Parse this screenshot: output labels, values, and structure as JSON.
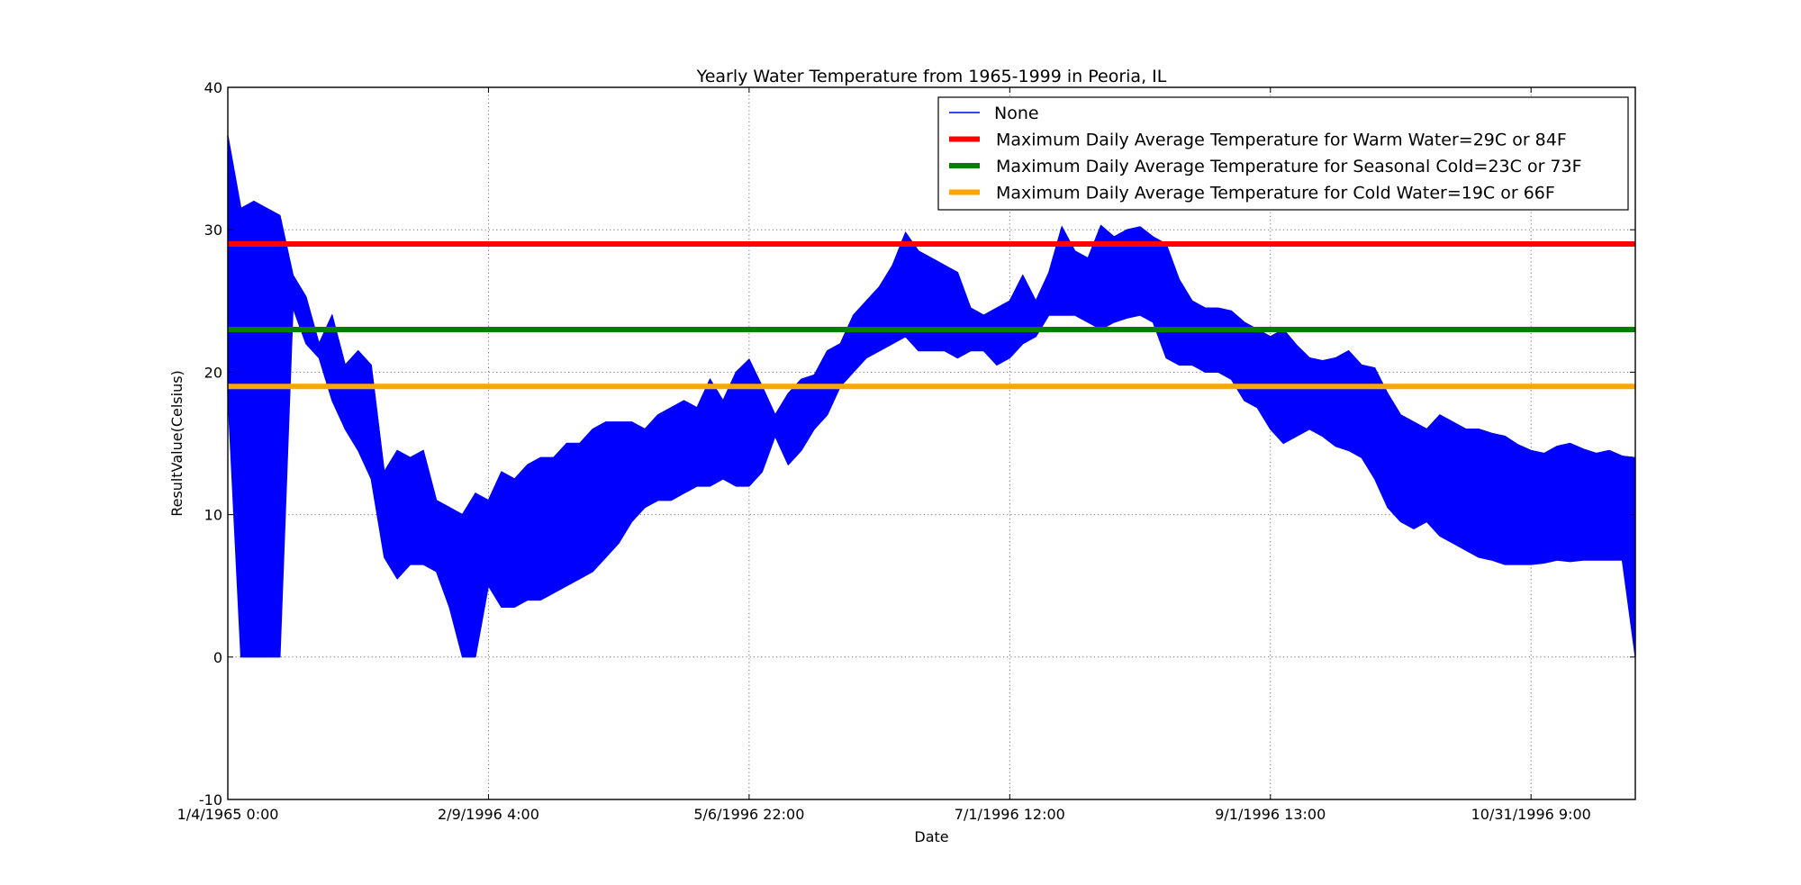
{
  "chart_data": {
    "type": "line",
    "title": "Yearly Water Temperature from 1965-1999 in Peoria, IL",
    "xlabel": "Date",
    "ylabel": "ResultValue(Celsius)",
    "ylim": [
      -10,
      40
    ],
    "yticks": [
      -10,
      0,
      10,
      20,
      30,
      40
    ],
    "x_tick_labels": [
      "1/4/1965 0:00",
      "2/9/1996 4:00",
      "5/6/1996 22:00",
      "7/1/1996 12:00",
      "9/1/1996 13:00",
      "10/31/1996 9:00"
    ],
    "x_index_range": [
      0,
      5.4
    ],
    "grid": true,
    "legend_position": "top-right",
    "series": [
      {
        "name": "None",
        "type": "band",
        "color": "#0000ff",
        "x": [
          0.0,
          0.05,
          0.1,
          0.15,
          0.2,
          0.25,
          0.3,
          0.35,
          0.4,
          0.45,
          0.5,
          0.55,
          0.6,
          0.65,
          0.7,
          0.75,
          0.8,
          0.85,
          0.9,
          0.95,
          1.0,
          1.05,
          1.1,
          1.15,
          1.2,
          1.25,
          1.3,
          1.35,
          1.4,
          1.45,
          1.5,
          1.55,
          1.6,
          1.65,
          1.7,
          1.75,
          1.8,
          1.85,
          1.9,
          1.95,
          2.0,
          2.05,
          2.1,
          2.15,
          2.2,
          2.25,
          2.3,
          2.35,
          2.4,
          2.45,
          2.5,
          2.55,
          2.6,
          2.65,
          2.7,
          2.75,
          2.8,
          2.85,
          2.9,
          2.95,
          3.0,
          3.05,
          3.1,
          3.15,
          3.2,
          3.25,
          3.3,
          3.35,
          3.4,
          3.45,
          3.5,
          3.55,
          3.6,
          3.65,
          3.7,
          3.75,
          3.8,
          3.85,
          3.9,
          3.95,
          4.0,
          4.05,
          4.1,
          4.15,
          4.2,
          4.25,
          4.3,
          4.35,
          4.4,
          4.45,
          4.5,
          4.55,
          4.6,
          4.65,
          4.7,
          4.75,
          4.8,
          4.85,
          4.9,
          4.95,
          5.0,
          5.05,
          5.1,
          5.15,
          5.2,
          5.25,
          5.3,
          5.35,
          5.4
        ],
        "high": [
          36.6,
          31.5,
          32.0,
          31.5,
          31.0,
          26.8,
          25.3,
          22.0,
          24.0,
          20.5,
          21.5,
          20.5,
          13.0,
          14.5,
          14.0,
          14.5,
          11.0,
          10.5,
          10.0,
          11.5,
          11.0,
          13.0,
          12.5,
          13.5,
          14.0,
          14.0,
          15.0,
          15.0,
          16.0,
          16.5,
          16.5,
          16.5,
          16.0,
          17.0,
          17.5,
          18.0,
          17.5,
          19.5,
          18.0,
          20.0,
          20.9,
          19.0,
          17.0,
          18.5,
          19.5,
          19.8,
          21.5,
          22.0,
          24.0,
          25.0,
          26.0,
          27.5,
          29.8,
          28.5,
          28.0,
          27.5,
          27.0,
          24.5,
          24.0,
          24.5,
          25.0,
          26.8,
          25.0,
          27.0,
          30.2,
          28.5,
          28.0,
          30.3,
          29.5,
          30.0,
          30.2,
          29.5,
          29.0,
          26.5,
          25.0,
          24.5,
          24.5,
          24.3,
          23.5,
          23.0,
          22.5,
          23.0,
          21.9,
          21.0,
          20.8,
          21.0,
          21.5,
          20.5,
          20.3,
          18.5,
          17.0,
          16.5,
          16.0,
          17.0,
          16.5,
          16.0,
          16.0,
          15.7,
          15.5,
          14.9,
          14.5,
          14.3,
          14.8,
          15.0,
          14.6,
          14.3,
          14.5,
          14.1,
          14.0
        ],
        "low": [
          18.5,
          0.0,
          0.0,
          0.0,
          0.0,
          24.5,
          22.0,
          21.0,
          18.0,
          16.0,
          14.5,
          12.5,
          7.0,
          5.5,
          6.5,
          6.5,
          6.0,
          3.5,
          0.0,
          0.0,
          5.0,
          3.5,
          3.5,
          4.0,
          4.0,
          4.5,
          5.0,
          5.5,
          6.0,
          7.0,
          8.0,
          9.5,
          10.5,
          11.0,
          11.0,
          11.5,
          12.0,
          12.0,
          12.5,
          12.0,
          12.0,
          13.0,
          15.5,
          13.5,
          14.5,
          16.0,
          17.0,
          19.0,
          20.0,
          21.0,
          21.5,
          22.0,
          22.5,
          21.5,
          21.5,
          21.5,
          21.0,
          21.5,
          21.5,
          20.5,
          21.0,
          22.0,
          22.5,
          24.0,
          24.0,
          24.0,
          23.5,
          23.0,
          23.5,
          23.8,
          24.0,
          23.5,
          21.0,
          20.5,
          20.5,
          20.0,
          20.0,
          19.5,
          18.0,
          17.5,
          16.0,
          15.0,
          15.5,
          16.0,
          15.5,
          14.8,
          14.5,
          14.0,
          12.5,
          10.5,
          9.5,
          9.0,
          9.5,
          8.5,
          8.0,
          7.5,
          7.0,
          6.8,
          6.5,
          6.5,
          6.5,
          6.6,
          6.8,
          6.7,
          6.8,
          6.8,
          6.8,
          6.8,
          0.0
        ]
      },
      {
        "name": "Maximum Daily Average Temperature for Warm Water=29C or 84F",
        "type": "hline",
        "y": 29,
        "color": "#ff0000"
      },
      {
        "name": "Maximum Daily Average Temperature for Seasonal Cold=23C or 73F",
        "type": "hline",
        "y": 23,
        "color": "#008000"
      },
      {
        "name": "Maximum Daily Average Temperature for Cold Water=19C or 66F",
        "type": "hline",
        "y": 19,
        "color": "#ffa500"
      }
    ]
  }
}
